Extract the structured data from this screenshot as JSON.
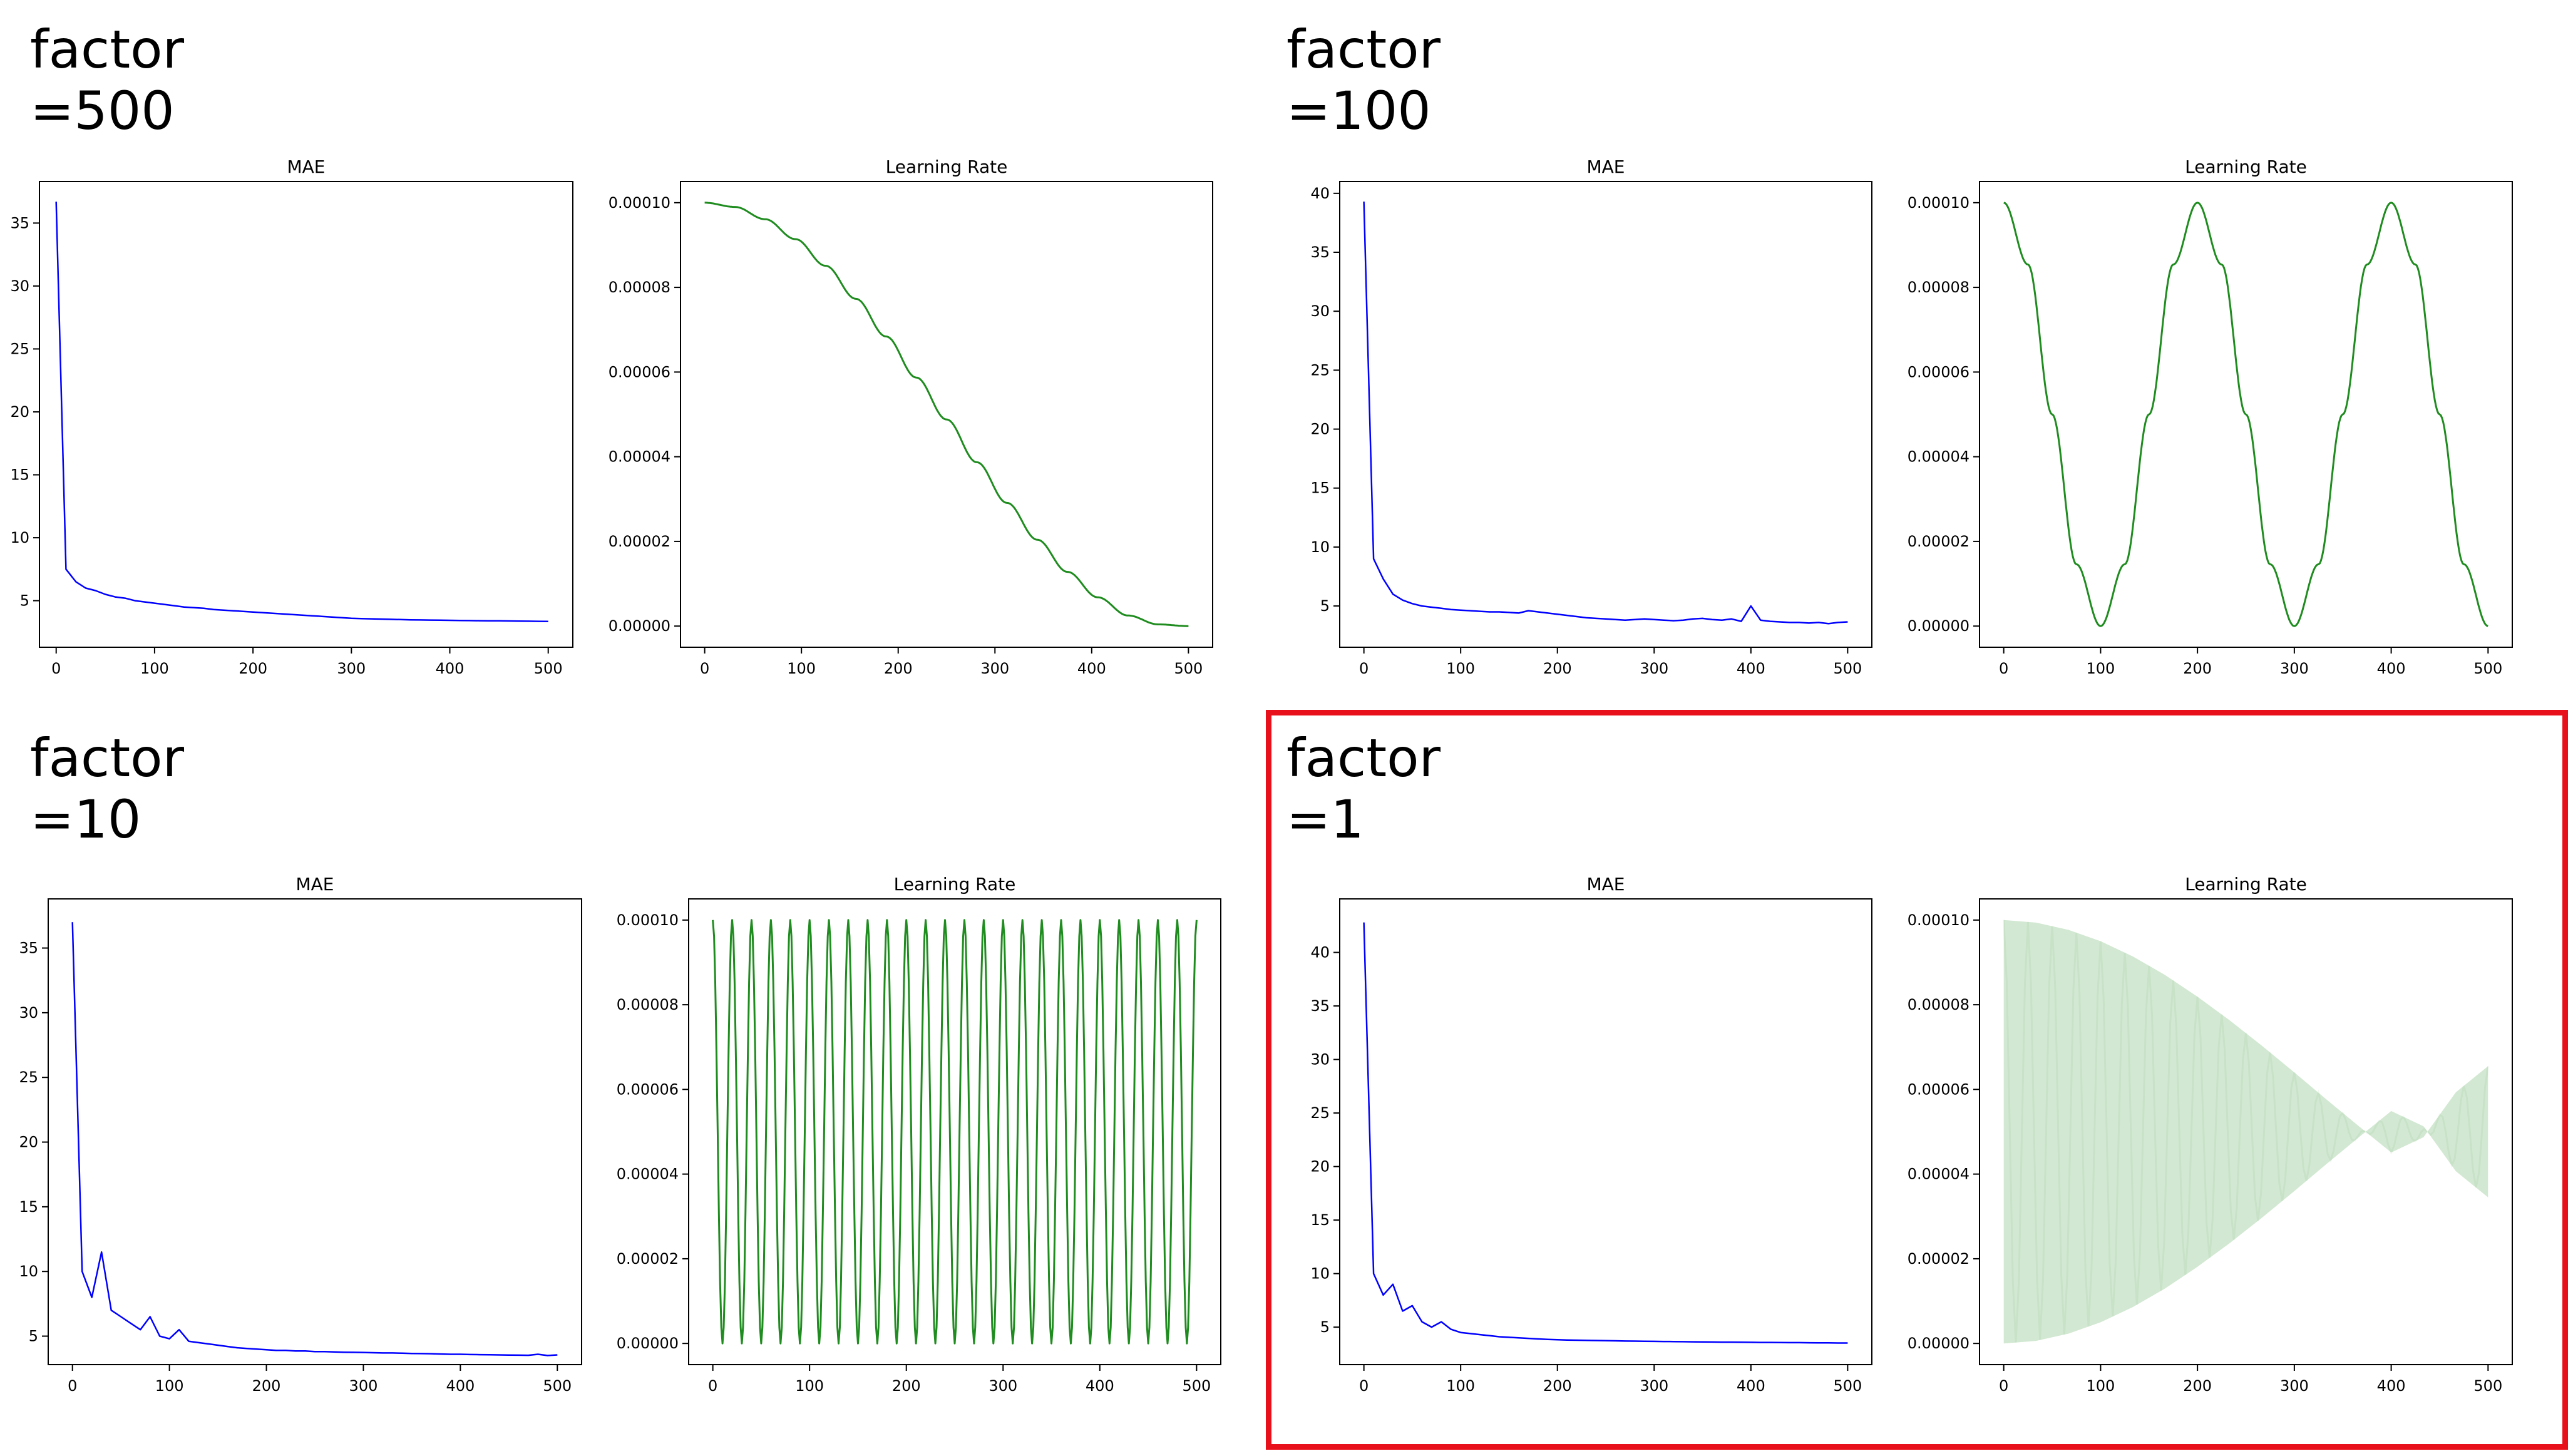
{
  "panels": [
    {
      "factor_label": "factor",
      "factor_value": "=500",
      "highlighted": false,
      "charts": [
        {
          "title": "MAE",
          "type": "line",
          "color": "#0000ff",
          "xlim": [
            -17,
            525
          ],
          "ylim": [
            1.3,
            38.3
          ],
          "xticks": [
            0,
            100,
            200,
            300,
            400,
            500
          ],
          "yticks": [
            5,
            10,
            15,
            20,
            25,
            30,
            35
          ],
          "series": [
            {
              "values": [
                36.7,
                7.5,
                6.5,
                6.0,
                5.8,
                5.5,
                5.3,
                5.2,
                5.0,
                4.9,
                4.8,
                4.7,
                4.6,
                4.5,
                4.45,
                4.4,
                4.3,
                4.25,
                4.2,
                4.15,
                4.1,
                4.05,
                4.0,
                3.95,
                3.9,
                3.85,
                3.8,
                3.75,
                3.7,
                3.65,
                3.6,
                3.58,
                3.56,
                3.54,
                3.52,
                3.5,
                3.48,
                3.47,
                3.46,
                3.45,
                3.44,
                3.43,
                3.42,
                3.41,
                3.4,
                3.4,
                3.39,
                3.38,
                3.37,
                3.36,
                3.35
              ]
            }
          ]
        },
        {
          "title": "Learning Rate",
          "type": "line",
          "color": "#1f8c1f",
          "xlim": [
            -25,
            525
          ],
          "ylim": [
            -5e-06,
            0.000105
          ],
          "xticks": [
            0,
            100,
            200,
            300,
            400,
            500
          ],
          "yticks": [
            "0.00000",
            "0.00002",
            "0.00004",
            "0.00006",
            "0.00008",
            "0.00010"
          ],
          "series": [
            {
              "values": [
                0.0001,
                9.9e-05,
                9.61e-05,
                9.14e-05,
                8.51e-05,
                7.73e-05,
                6.84e-05,
                5.87e-05,
                4.88e-05,
                3.87e-05,
                2.91e-05,
                2.04e-05,
                1.28e-05,
                6.8e-06,
                2.5e-06,
                4e-07,
                0.0
              ]
            }
          ]
        }
      ]
    },
    {
      "factor_label": "factor",
      "factor_value": "=100",
      "highlighted": false,
      "charts": [
        {
          "title": "MAE",
          "type": "line",
          "color": "#0000ff",
          "xlim": [
            -25,
            525
          ],
          "ylim": [
            1.5,
            41.0
          ],
          "xticks": [
            0,
            100,
            200,
            300,
            400,
            500
          ],
          "yticks": [
            5,
            10,
            15,
            20,
            25,
            30,
            35,
            40
          ],
          "series": [
            {
              "values": [
                39.3,
                9.0,
                7.3,
                6.0,
                5.5,
                5.2,
                5.0,
                4.9,
                4.8,
                4.7,
                4.65,
                4.6,
                4.55,
                4.5,
                4.5,
                4.45,
                4.4,
                4.6,
                4.5,
                4.4,
                4.3,
                4.2,
                4.1,
                4.0,
                3.95,
                3.9,
                3.85,
                3.8,
                3.85,
                3.9,
                3.85,
                3.8,
                3.75,
                3.8,
                3.9,
                3.95,
                3.85,
                3.8,
                3.9,
                3.7,
                5.0,
                3.8,
                3.7,
                3.65,
                3.6,
                3.6,
                3.55,
                3.6,
                3.5,
                3.6,
                3.65
              ]
            }
          ]
        },
        {
          "title": "Learning Rate",
          "type": "line",
          "color": "#1f8c1f",
          "xlim": [
            -25,
            525
          ],
          "ylim": [
            -5e-06,
            0.000105
          ],
          "xticks": [
            0,
            100,
            200,
            300,
            400,
            500
          ],
          "yticks": [
            "0.00000",
            "0.00002",
            "0.00004",
            "0.00006",
            "0.00008",
            "0.00010"
          ],
          "series": [
            {
              "values": [
                0.0001,
                8.54e-05,
                5e-05,
                1.46e-05,
                0.0,
                1.46e-05,
                5e-05,
                8.54e-05,
                0.0001,
                8.54e-05,
                5e-05,
                1.46e-05,
                0.0,
                1.46e-05,
                5e-05,
                8.54e-05,
                0.0001,
                8.54e-05,
                5e-05,
                1.46e-05,
                0.0
              ]
            }
          ]
        }
      ]
    },
    {
      "factor_label": "factor",
      "factor_value": "=10",
      "highlighted": false,
      "charts": [
        {
          "title": "MAE",
          "type": "line",
          "color": "#0000ff",
          "xlim": [
            -25,
            525
          ],
          "ylim": [
            2.8,
            38.8
          ],
          "xticks": [
            0,
            100,
            200,
            300,
            400,
            500
          ],
          "yticks": [
            5,
            10,
            15,
            20,
            25,
            30,
            35
          ],
          "series": [
            {
              "values": [
                37.0,
                10.0,
                8.0,
                11.5,
                7.0,
                6.5,
                6.0,
                5.5,
                6.5,
                5.0,
                4.8,
                5.5,
                4.6,
                4.5,
                4.4,
                4.3,
                4.2,
                4.1,
                4.05,
                4.0,
                3.95,
                3.9,
                3.9,
                3.85,
                3.85,
                3.8,
                3.8,
                3.78,
                3.76,
                3.75,
                3.74,
                3.72,
                3.7,
                3.7,
                3.68,
                3.66,
                3.65,
                3.64,
                3.62,
                3.6,
                3.6,
                3.58,
                3.57,
                3.56,
                3.55,
                3.54,
                3.53,
                3.52,
                3.6,
                3.5,
                3.55
              ]
            }
          ]
        },
        {
          "title": "Learning Rate",
          "type": "line",
          "color": "#1f8c1f",
          "xlim": [
            -25,
            525
          ],
          "ylim": [
            -5e-06,
            0.000105
          ],
          "xticks": [
            0,
            100,
            200,
            300,
            400,
            500
          ],
          "yticks": [
            "0.00000",
            "0.00002",
            "0.00004",
            "0.00006",
            "0.00008",
            "0.00010"
          ],
          "series": [
            {
              "values": [
                0.0001,
                0.0,
                0.0001,
                0.0,
                0.0001,
                0.0,
                0.0001,
                0.0,
                0.0001,
                0.0,
                0.0001,
                0.0,
                0.0001,
                0.0,
                0.0001,
                0.0,
                0.0001,
                0.0,
                0.0001,
                0.0,
                0.0001,
                0.0,
                0.0001,
                0.0,
                0.0001,
                0.0,
                0.0001,
                0.0,
                0.0001,
                0.0,
                0.0001,
                0.0,
                0.0001,
                0.0,
                0.0001,
                0.0,
                0.0001,
                0.0,
                0.0001,
                0.0,
                0.0001,
                0.0,
                0.0001,
                0.0,
                0.0001,
                0.0,
                0.0001,
                0.0,
                0.0001,
                0.0,
                0.0001
              ]
            }
          ]
        }
      ]
    },
    {
      "factor_label": "factor",
      "factor_value": "=1",
      "highlighted": true,
      "charts": [
        {
          "title": "MAE",
          "type": "line",
          "color": "#0000ff",
          "xlim": [
            -25,
            525
          ],
          "ylim": [
            1.5,
            45.0
          ],
          "xticks": [
            0,
            100,
            200,
            300,
            400,
            500
          ],
          "yticks": [
            5,
            10,
            15,
            20,
            25,
            30,
            35,
            40
          ],
          "series": [
            {
              "values": [
                42.8,
                10.0,
                8.0,
                9.0,
                6.5,
                7.0,
                5.5,
                5.0,
                5.5,
                4.8,
                4.5,
                4.4,
                4.3,
                4.2,
                4.1,
                4.05,
                4.0,
                3.95,
                3.9,
                3.85,
                3.82,
                3.8,
                3.78,
                3.76,
                3.75,
                3.74,
                3.72,
                3.7,
                3.69,
                3.68,
                3.67,
                3.66,
                3.65,
                3.64,
                3.63,
                3.62,
                3.61,
                3.6,
                3.6,
                3.59,
                3.58,
                3.57,
                3.57,
                3.56,
                3.55,
                3.55,
                3.54,
                3.53,
                3.53,
                3.52,
                3.52
              ]
            }
          ]
        },
        {
          "title": "Learning Rate",
          "type": "area",
          "color": "#1f8c1f",
          "xlim": [
            -25,
            525
          ],
          "ylim": [
            -5e-06,
            0.000105
          ],
          "xticks": [
            0,
            100,
            200,
            300,
            400,
            500
          ],
          "yticks": [
            "0.00000",
            "0.00002",
            "0.00004",
            "0.00006",
            "0.00008",
            "0.00010"
          ],
          "series": [
            {
              "values": [
                0.0001,
                9.94e-05,
                9.77e-05,
                9.5e-05,
                9.14e-05,
                8.7e-05,
                8.19e-05,
                7.63e-05,
                7.03e-05,
                6.4e-05,
                5.76e-05,
                5.13e-05,
                4.51e-05,
                4.87e-05,
                5.93e-05,
                6.55e-05
              ]
            },
            {
              "values": [
                0.0,
                6e-07,
                2.3e-06,
                5e-06,
                8.6e-06,
                1.3e-05,
                1.81e-05,
                2.37e-05,
                2.97e-05,
                3.6e-05,
                4.24e-05,
                4.87e-05,
                5.49e-05,
                5.13e-05,
                4.07e-05,
                3.45e-05
              ]
            }
          ]
        }
      ]
    }
  ]
}
